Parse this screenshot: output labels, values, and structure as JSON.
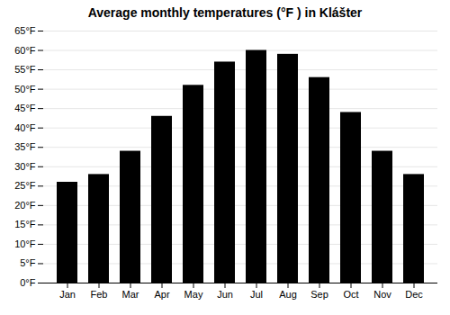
{
  "chart_data": {
    "type": "bar",
    "title": "Average monthly temperatures (°F ) in Klášter",
    "categories": [
      "Jan",
      "Feb",
      "Mar",
      "Apr",
      "May",
      "Jun",
      "Jul",
      "Aug",
      "Sep",
      "Oct",
      "Nov",
      "Dec"
    ],
    "values": [
      26,
      28,
      34,
      43,
      51,
      57,
      60,
      59,
      53,
      44,
      34,
      28
    ],
    "ylim": [
      0,
      65
    ],
    "yticks": [
      {
        "value": 0,
        "label": "0°F"
      },
      {
        "value": 5,
        "label": "5°F"
      },
      {
        "value": 10,
        "label": "10°F"
      },
      {
        "value": 15,
        "label": "15°F"
      },
      {
        "value": 20,
        "label": "20°F"
      },
      {
        "value": 25,
        "label": "25°F"
      },
      {
        "value": 30,
        "label": "30°F"
      },
      {
        "value": 35,
        "label": "35°F"
      },
      {
        "value": 40,
        "label": "40°F"
      },
      {
        "value": 45,
        "label": "45°F"
      },
      {
        "value": 50,
        "label": "50°F"
      },
      {
        "value": 55,
        "label": "55°F"
      },
      {
        "value": 60,
        "label": "60°F"
      },
      {
        "value": 65,
        "label": "65°F"
      }
    ],
    "grid": true
  }
}
